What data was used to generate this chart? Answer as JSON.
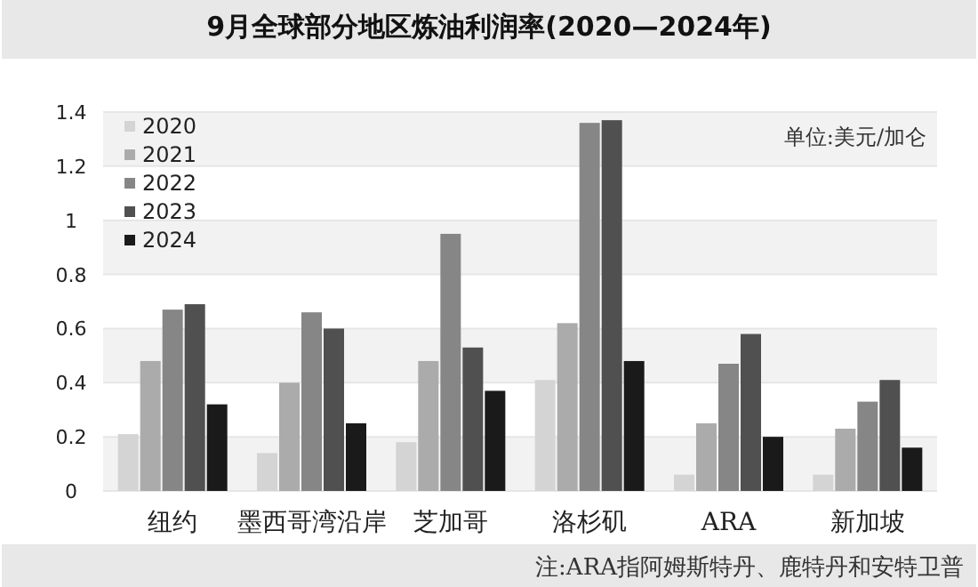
{
  "chart_data": {
    "type": "bar",
    "title": "9月全球部分地区炼油利润率(2020—2024年)",
    "categories": [
      "纽约",
      "墨西哥湾沿岸",
      "芝加哥",
      "洛杉矶",
      "ARA",
      "新加坡"
    ],
    "series": [
      {
        "name": "2020",
        "color": "#d4d4d4",
        "values": [
          0.21,
          0.14,
          0.18,
          0.41,
          0.06,
          0.06
        ]
      },
      {
        "name": "2021",
        "color": "#ababab",
        "values": [
          0.48,
          0.4,
          0.48,
          0.62,
          0.25,
          0.23
        ]
      },
      {
        "name": "2022",
        "color": "#868686",
        "values": [
          0.67,
          0.66,
          0.95,
          1.36,
          0.47,
          0.33
        ]
      },
      {
        "name": "2023",
        "color": "#505050",
        "values": [
          0.69,
          0.6,
          0.53,
          1.37,
          0.58,
          0.41
        ]
      },
      {
        "name": "2024",
        "color": "#1a1a1a",
        "values": [
          0.32,
          0.25,
          0.37,
          0.48,
          0.2,
          0.16
        ]
      }
    ],
    "ylim": [
      0,
      1.4
    ],
    "yticks": [
      0,
      0.2,
      0.4,
      0.6,
      0.8,
      1,
      1.2,
      1.4
    ],
    "grid": "y",
    "legend": "top left",
    "annotations": [
      "单位:美元/加仑",
      "注:ARA指阿姆斯特丹、鹿特丹和安特卫普"
    ]
  }
}
